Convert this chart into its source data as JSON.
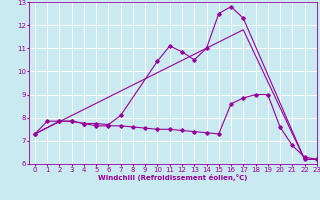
{
  "background_color": "#c8eaf0",
  "grid_color": "#ffffff",
  "line_color": "#990099",
  "xlabel": "Windchill (Refroidissement éolien,°C)",
  "xlim": [
    -0.5,
    23
  ],
  "ylim": [
    6,
    13
  ],
  "yticks": [
    6,
    7,
    8,
    9,
    10,
    11,
    12,
    13
  ],
  "xticks": [
    0,
    1,
    2,
    3,
    4,
    5,
    6,
    7,
    8,
    9,
    10,
    11,
    12,
    13,
    14,
    15,
    16,
    17,
    18,
    19,
    20,
    21,
    22,
    23
  ],
  "series": [
    {
      "x": [
        0,
        1,
        2,
        3,
        4,
        5,
        6,
        7,
        10,
        11,
        12,
        13,
        14,
        15,
        16,
        17,
        22,
        23
      ],
      "y": [
        7.3,
        7.85,
        7.85,
        7.85,
        7.75,
        7.75,
        7.7,
        8.1,
        10.45,
        11.1,
        10.85,
        10.5,
        11.0,
        12.5,
        12.8,
        12.3,
        6.2,
        6.2
      ]
    },
    {
      "x": [
        0,
        17,
        22,
        23
      ],
      "y": [
        7.3,
        11.8,
        6.2,
        6.2
      ]
    },
    {
      "x": [
        0,
        2,
        3,
        4,
        5,
        6,
        7,
        8,
        9,
        10,
        11,
        12,
        13,
        14,
        15,
        16,
        17,
        18,
        19,
        20,
        21,
        22,
        23
      ],
      "y": [
        7.3,
        7.85,
        7.85,
        7.75,
        7.65,
        7.65,
        7.65,
        7.6,
        7.55,
        7.5,
        7.5,
        7.45,
        7.4,
        7.35,
        7.3,
        8.6,
        8.85,
        9.0,
        9.0,
        7.6,
        6.8,
        6.3,
        6.2
      ]
    }
  ]
}
